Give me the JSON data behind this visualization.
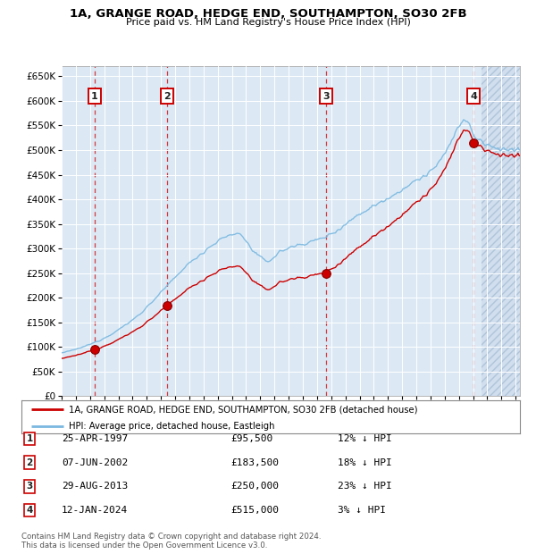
{
  "title": "1A, GRANGE ROAD, HEDGE END, SOUTHAMPTON, SO30 2FB",
  "subtitle": "Price paid vs. HM Land Registry's House Price Index (HPI)",
  "legend_line1": "1A, GRANGE ROAD, HEDGE END, SOUTHAMPTON, SO30 2FB (detached house)",
  "legend_line2": "HPI: Average price, detached house, Eastleigh",
  "footer1": "Contains HM Land Registry data © Crown copyright and database right 2024.",
  "footer2": "This data is licensed under the Open Government Licence v3.0.",
  "sale_points": [
    {
      "num": 1,
      "date_dec": 1997.32,
      "price": 95500,
      "label": "25-APR-1997",
      "pct": "12% ↓ HPI"
    },
    {
      "num": 2,
      "date_dec": 2002.44,
      "price": 183500,
      "label": "07-JUN-2002",
      "pct": "18% ↓ HPI"
    },
    {
      "num": 3,
      "date_dec": 2013.66,
      "price": 250000,
      "label": "29-AUG-2013",
      "pct": "23% ↓ HPI"
    },
    {
      "num": 4,
      "date_dec": 2024.04,
      "price": 515000,
      "label": "12-JAN-2024",
      "pct": "3% ↓ HPI"
    }
  ],
  "hpi_color": "#7ab8e0",
  "price_color": "#cc0000",
  "bg_color": "#dce9f5",
  "ylim": [
    0,
    670000
  ],
  "xlim_start": 1995.0,
  "xlim_end": 2027.3,
  "yticks": [
    0,
    50000,
    100000,
    150000,
    200000,
    250000,
    300000,
    350000,
    400000,
    450000,
    500000,
    550000,
    600000,
    650000
  ],
  "xticks": [
    1995,
    1996,
    1997,
    1998,
    1999,
    2000,
    2001,
    2002,
    2003,
    2004,
    2005,
    2006,
    2007,
    2008,
    2009,
    2010,
    2011,
    2012,
    2013,
    2014,
    2015,
    2016,
    2017,
    2018,
    2019,
    2020,
    2021,
    2022,
    2023,
    2024,
    2025,
    2026,
    2027
  ],
  "hatch_start": 2024.5
}
